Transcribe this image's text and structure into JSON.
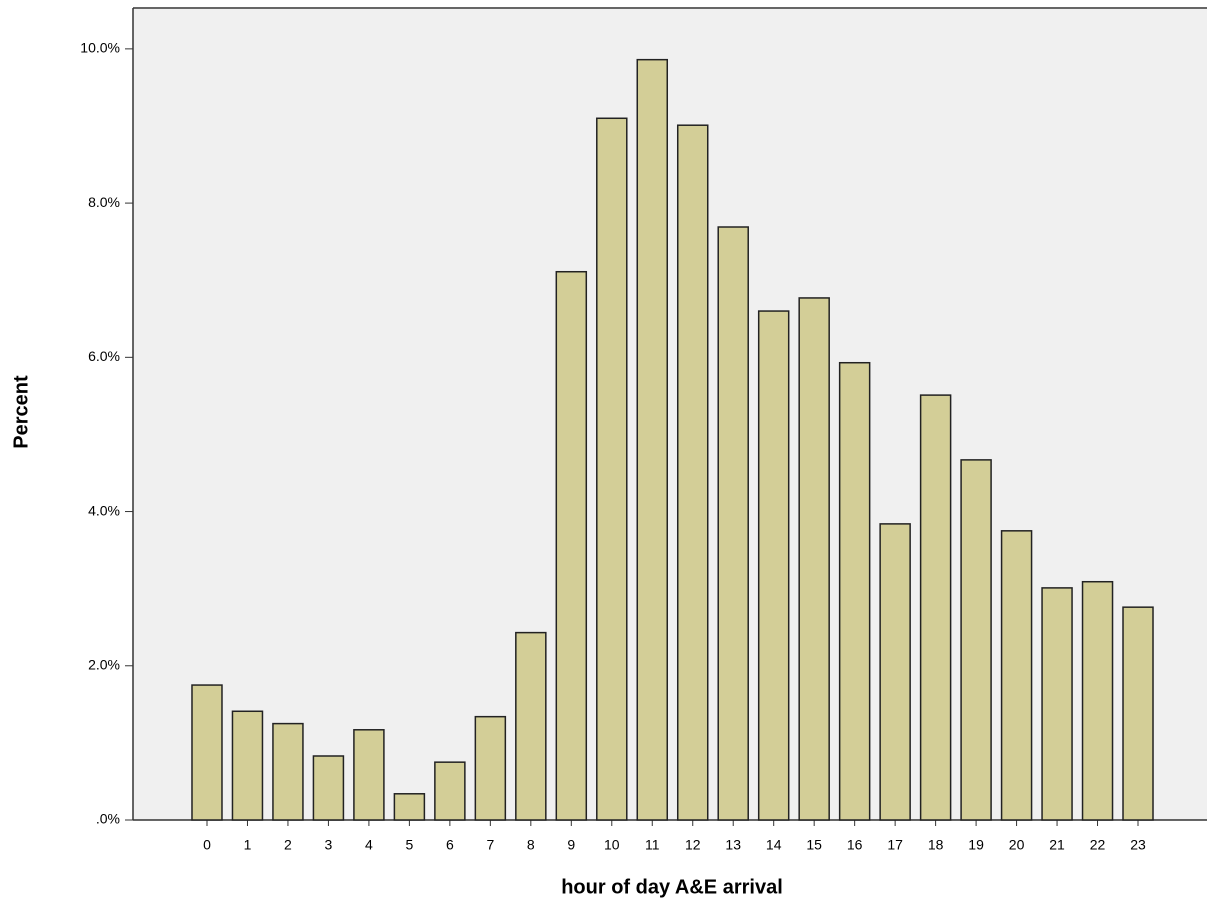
{
  "chart_data": {
    "type": "bar",
    "x_label": "hour of day A&E arrival",
    "y_label": "Percent",
    "categories": [
      "0",
      "1",
      "2",
      "3",
      "4",
      "5",
      "6",
      "7",
      "8",
      "9",
      "10",
      "11",
      "12",
      "13",
      "14",
      "15",
      "16",
      "17",
      "18",
      "19",
      "20",
      "21",
      "22",
      "23"
    ],
    "values": [
      1.75,
      1.41,
      1.25,
      0.83,
      1.17,
      0.34,
      0.75,
      1.34,
      2.43,
      7.11,
      9.1,
      9.86,
      9.01,
      7.69,
      6.6,
      6.77,
      5.93,
      3.84,
      5.51,
      4.67,
      3.75,
      3.01,
      3.09,
      2.76
    ],
    "color": "#d3ce97",
    "ylim": [
      0,
      10.53
    ],
    "yticks": [
      {
        "value": 0,
        "label": ".0%"
      },
      {
        "value": 2,
        "label": "2.0%"
      },
      {
        "value": 4,
        "label": "4.0%"
      },
      {
        "value": 6,
        "label": "6.0%"
      },
      {
        "value": 8,
        "label": "8.0%"
      },
      {
        "value": 10,
        "label": "10.0%"
      }
    ]
  }
}
